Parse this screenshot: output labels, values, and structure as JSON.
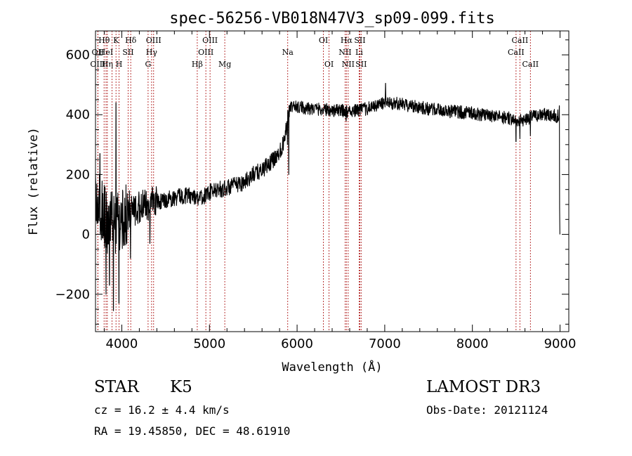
{
  "chart_data": {
    "type": "line",
    "title": "spec-56256-VB018N47V3_sp09-099.fits",
    "xlabel": "Wavelength (Å)",
    "ylabel": "Flux (relative)",
    "xlim": [
      3700,
      9100
    ],
    "ylim": [
      -325,
      680
    ],
    "x_ticks": [
      4000,
      5000,
      6000,
      7000,
      8000,
      9000
    ],
    "y_ticks": [
      -200,
      0,
      200,
      400,
      600
    ],
    "grid": false,
    "line_color": "#000000",
    "marker_color": "#b22222",
    "continuum": [
      [
        3700,
        100
      ],
      [
        3750,
        90
      ],
      [
        3800,
        60
      ],
      [
        3850,
        40
      ],
      [
        3900,
        30
      ],
      [
        3950,
        40
      ],
      [
        4000,
        40
      ],
      [
        4050,
        60
      ],
      [
        4100,
        80
      ],
      [
        4200,
        90
      ],
      [
        4300,
        100
      ],
      [
        4400,
        110
      ],
      [
        4500,
        115
      ],
      [
        4600,
        122
      ],
      [
        4700,
        130
      ],
      [
        4800,
        130
      ],
      [
        4900,
        120
      ],
      [
        5000,
        140
      ],
      [
        5100,
        150
      ],
      [
        5200,
        155
      ],
      [
        5300,
        165
      ],
      [
        5400,
        175
      ],
      [
        5500,
        200
      ],
      [
        5600,
        215
      ],
      [
        5700,
        240
      ],
      [
        5800,
        275
      ],
      [
        5850,
        310
      ],
      [
        5900,
        410
      ],
      [
        5950,
        430
      ],
      [
        6000,
        425
      ],
      [
        6200,
        420
      ],
      [
        6400,
        415
      ],
      [
        6600,
        412
      ],
      [
        6800,
        420
      ],
      [
        7000,
        440
      ],
      [
        7200,
        435
      ],
      [
        7400,
        425
      ],
      [
        7600,
        415
      ],
      [
        7800,
        410
      ],
      [
        8000,
        405
      ],
      [
        8200,
        395
      ],
      [
        8400,
        390
      ],
      [
        8500,
        380
      ],
      [
        8600,
        385
      ],
      [
        8700,
        395
      ],
      [
        8800,
        400
      ],
      [
        8900,
        400
      ],
      [
        8950,
        395
      ]
    ],
    "features": [
      {
        "x": 3750,
        "y": 270
      },
      {
        "x": 3820,
        "y": -200
      },
      {
        "x": 3860,
        "y": -170
      },
      {
        "x": 3905,
        "y": -255
      },
      {
        "x": 3933,
        "y": 440
      },
      {
        "x": 3968,
        "y": -230
      },
      {
        "x": 4100,
        "y": -80
      },
      {
        "x": 4320,
        "y": -30
      },
      {
        "x": 5890,
        "y": 300
      },
      {
        "x": 5905,
        "y": 200
      },
      {
        "x": 6560,
        "y": 380
      },
      {
        "x": 7010,
        "y": 505
      },
      {
        "x": 8498,
        "y": 310
      },
      {
        "x": 8542,
        "y": 320
      },
      {
        "x": 8662,
        "y": 330
      },
      {
        "x": 8993,
        "y": 430
      },
      {
        "x": 8995,
        "y": 90
      },
      {
        "x": 8998,
        "y": 0
      }
    ],
    "noise_seed": 56256,
    "spectral_lines": [
      {
        "wavelength": 3727,
        "label": "OII",
        "row": 2
      },
      {
        "wavelength": 3727,
        "label": "OIII",
        "row": 3
      },
      {
        "wavelength": 3798,
        "label": "Hθ",
        "row": 1
      },
      {
        "wavelength": 3820,
        "label": "HeI",
        "row": 2
      },
      {
        "wavelength": 3835,
        "label": "Hη",
        "row": 3
      },
      {
        "wavelength": 3889,
        "label": "",
        "row": 1
      },
      {
        "wavelength": 3934,
        "label": "K",
        "row": 1
      },
      {
        "wavelength": 3969,
        "label": "H",
        "row": 3
      },
      {
        "wavelength": 4072,
        "label": "SII",
        "row": 2
      },
      {
        "wavelength": 4102,
        "label": "Hδ",
        "row": 1
      },
      {
        "wavelength": 4300,
        "label": "G",
        "row": 3
      },
      {
        "wavelength": 4340,
        "label": "Hγ",
        "row": 2
      },
      {
        "wavelength": 4363,
        "label": "OIII",
        "row": 1
      },
      {
        "wavelength": 4861,
        "label": "Hβ",
        "row": 3
      },
      {
        "wavelength": 4959,
        "label": "OIII",
        "row": 2
      },
      {
        "wavelength": 5007,
        "label": "OIII",
        "row": 1
      },
      {
        "wavelength": 5175,
        "label": "Mg",
        "row": 3
      },
      {
        "wavelength": 5893,
        "label": "Na",
        "row": 2
      },
      {
        "wavelength": 6300,
        "label": "OI",
        "row": 1
      },
      {
        "wavelength": 6364,
        "label": "OI",
        "row": 3
      },
      {
        "wavelength": 6548,
        "label": "NII",
        "row": 2
      },
      {
        "wavelength": 6563,
        "label": "Hα",
        "row": 1
      },
      {
        "wavelength": 6583,
        "label": "NII",
        "row": 3
      },
      {
        "wavelength": 6708,
        "label": "Li",
        "row": 2
      },
      {
        "wavelength": 6716,
        "label": "SII",
        "row": 1
      },
      {
        "wavelength": 6731,
        "label": "SII",
        "row": 3
      },
      {
        "wavelength": 8498,
        "label": "CaII",
        "row": 2
      },
      {
        "wavelength": 8542,
        "label": "CaII",
        "row": 1
      },
      {
        "wavelength": 8662,
        "label": "CaII",
        "row": 3
      }
    ]
  },
  "info": {
    "object_class": "STAR",
    "subclass": "K5",
    "survey": "LAMOST DR3",
    "redshift": "cz = 16.2 ± 4.4 km/s",
    "obs_date": "Obs-Date: 20121124",
    "coordinates": "RA =  19.45850, DEC =  48.61910"
  }
}
